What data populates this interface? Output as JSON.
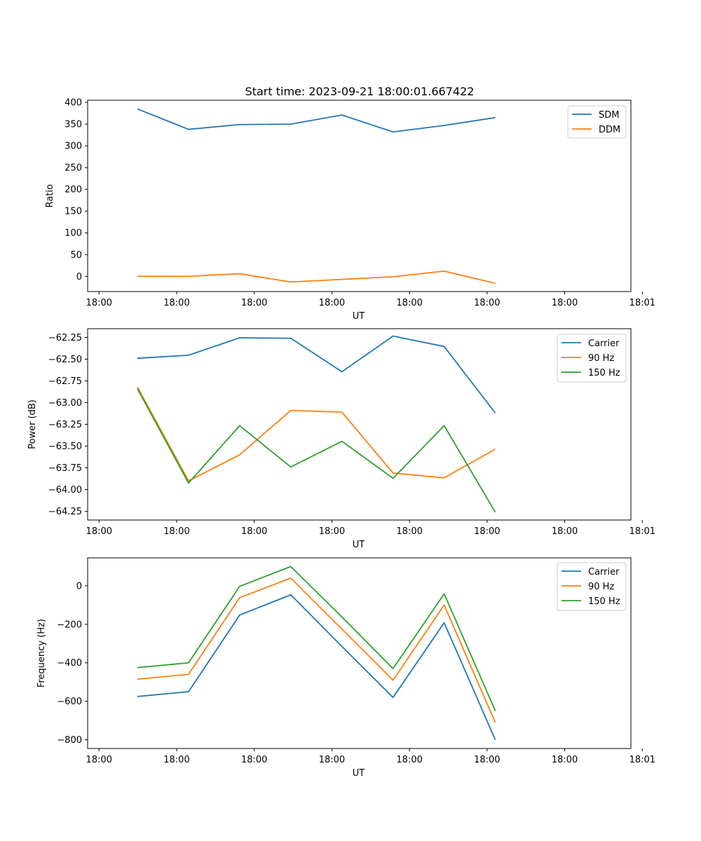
{
  "figure": {
    "title": "Start time: 2023-09-21 18:00:01.667422"
  },
  "chart_data": [
    {
      "type": "line",
      "title": "Start time: 2023-09-21 18:00:01.667422",
      "xlabel": "UT",
      "ylabel": "Ratio",
      "xlim": [
        -1.25,
        58.25
      ],
      "ylim": [
        -35,
        405
      ],
      "x_ticks": [
        {
          "value": 0,
          "label": "18:00"
        },
        {
          "value": 8.5,
          "label": "18:00"
        },
        {
          "value": 17,
          "label": "18:00"
        },
        {
          "value": 25.5,
          "label": "18:00"
        },
        {
          "value": 34,
          "label": "18:00"
        },
        {
          "value": 42.5,
          "label": "18:00"
        },
        {
          "value": 51,
          "label": "18:00"
        },
        {
          "value": 59.5,
          "label": "18:01"
        }
      ],
      "y_ticks": [
        {
          "value": 0,
          "label": "0"
        },
        {
          "value": 50,
          "label": "50"
        },
        {
          "value": 100,
          "label": "100"
        },
        {
          "value": 150,
          "label": "150"
        },
        {
          "value": 200,
          "label": "200"
        },
        {
          "value": 250,
          "label": "250"
        },
        {
          "value": 300,
          "label": "300"
        },
        {
          "value": 350,
          "label": "350"
        },
        {
          "value": 400,
          "label": "400"
        }
      ],
      "legend_position": "top-right",
      "x": [
        4.2,
        9.8,
        15.4,
        21.0,
        26.6,
        32.2,
        37.8,
        43.4
      ],
      "series": [
        {
          "name": "SDM",
          "color": "#1f77b4",
          "values": [
            385,
            338,
            349,
            350,
            371,
            332,
            347,
            365
          ]
        },
        {
          "name": "DDM",
          "color": "#ff7f0e",
          "values": [
            0,
            0,
            6,
            -13,
            -7,
            -1,
            12,
            -16
          ]
        }
      ]
    },
    {
      "type": "line",
      "title": "",
      "xlabel": "UT",
      "ylabel": "Power (dB)",
      "xlim": [
        -1.25,
        58.25
      ],
      "ylim": [
        -64.35,
        -62.15
      ],
      "x_ticks": [
        {
          "value": 0,
          "label": "18:00"
        },
        {
          "value": 8.5,
          "label": "18:00"
        },
        {
          "value": 17,
          "label": "18:00"
        },
        {
          "value": 25.5,
          "label": "18:00"
        },
        {
          "value": 34,
          "label": "18:00"
        },
        {
          "value": 42.5,
          "label": "18:00"
        },
        {
          "value": 51,
          "label": "18:00"
        },
        {
          "value": 59.5,
          "label": "18:01"
        }
      ],
      "y_ticks": [
        {
          "value": -62.25,
          "label": "−62.25"
        },
        {
          "value": -62.5,
          "label": "−62.50"
        },
        {
          "value": -62.75,
          "label": "−62.75"
        },
        {
          "value": -63.0,
          "label": "−63.00"
        },
        {
          "value": -63.25,
          "label": "−63.25"
        },
        {
          "value": -63.5,
          "label": "−63.50"
        },
        {
          "value": -63.75,
          "label": "−63.75"
        },
        {
          "value": -64.0,
          "label": "−64.00"
        },
        {
          "value": -64.25,
          "label": "−64.25"
        }
      ],
      "legend_position": "top-right",
      "x": [
        4.2,
        9.8,
        15.4,
        21.0,
        26.6,
        32.2,
        37.8,
        43.4
      ],
      "series": [
        {
          "name": "Carrier",
          "color": "#1f77b4",
          "values": [
            -62.49,
            -62.455,
            -62.255,
            -62.26,
            -62.645,
            -62.235,
            -62.355,
            -63.12
          ]
        },
        {
          "name": "90 Hz",
          "color": "#ff7f0e",
          "values": [
            -62.82,
            -63.9,
            -63.6,
            -63.09,
            -63.11,
            -63.81,
            -63.865,
            -63.535
          ]
        },
        {
          "name": "150 Hz",
          "color": "#2ca02c",
          "values": [
            -62.84,
            -63.925,
            -63.265,
            -63.74,
            -63.445,
            -63.87,
            -63.265,
            -64.26
          ]
        }
      ]
    },
    {
      "type": "line",
      "title": "",
      "xlabel": "UT",
      "ylabel": "Frequency (Hz)",
      "xlim": [
        -1.25,
        58.25
      ],
      "ylim": [
        -845,
        145
      ],
      "x_ticks": [
        {
          "value": 0,
          "label": "18:00"
        },
        {
          "value": 8.5,
          "label": "18:00"
        },
        {
          "value": 17,
          "label": "18:00"
        },
        {
          "value": 25.5,
          "label": "18:00"
        },
        {
          "value": 34,
          "label": "18:00"
        },
        {
          "value": 42.5,
          "label": "18:00"
        },
        {
          "value": 51,
          "label": "18:00"
        },
        {
          "value": 59.5,
          "label": "18:01"
        }
      ],
      "y_ticks": [
        {
          "value": 0,
          "label": "0"
        },
        {
          "value": -200,
          "label": "−200"
        },
        {
          "value": -400,
          "label": "−400"
        },
        {
          "value": -600,
          "label": "−600"
        },
        {
          "value": -800,
          "label": "−800"
        }
      ],
      "legend_position": "top-right",
      "x": [
        4.2,
        9.8,
        15.4,
        21.0,
        26.6,
        32.2,
        37.8,
        43.4
      ],
      "series": [
        {
          "name": "Carrier",
          "color": "#1f77b4",
          "values": [
            -575,
            -550,
            -152,
            -47,
            -315,
            -580,
            -192,
            -800
          ]
        },
        {
          "name": "90 Hz",
          "color": "#ff7f0e",
          "values": [
            -485,
            -460,
            -62,
            40,
            -225,
            -490,
            -100,
            -710
          ]
        },
        {
          "name": "150 Hz",
          "color": "#2ca02c",
          "values": [
            -425,
            -400,
            -3,
            100,
            -162,
            -430,
            -42,
            -650
          ]
        }
      ]
    }
  ]
}
